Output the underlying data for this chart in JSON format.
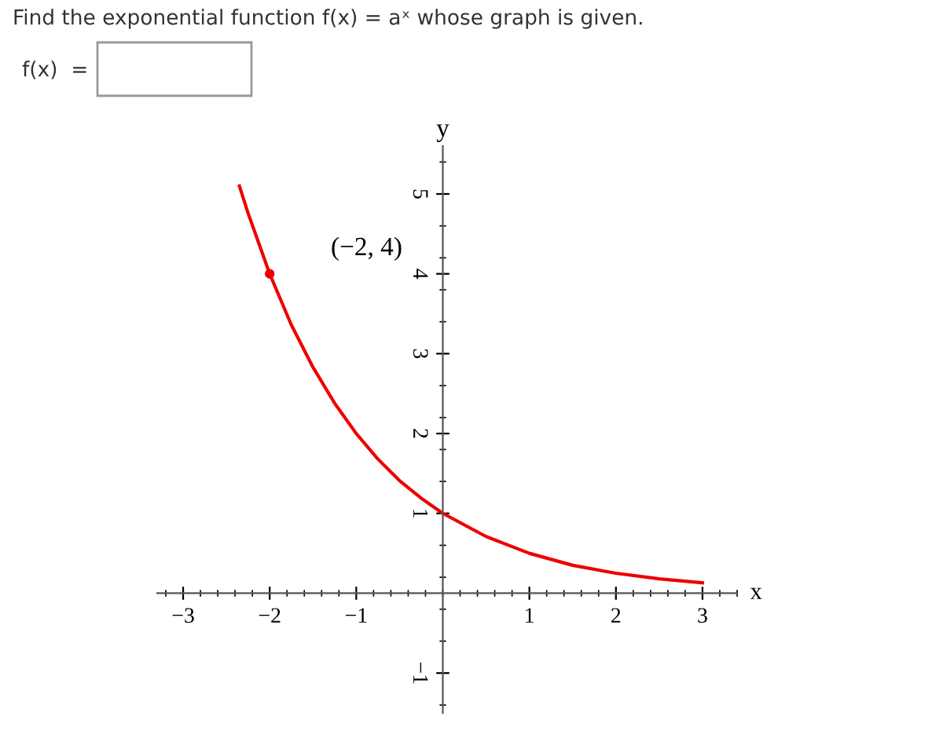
{
  "chart_data": {
    "type": "line",
    "xlabel": "x",
    "ylabel": "y",
    "annotations": [
      "Find the exponential function f(x) = aˣ whose graph is given.",
      "f(x)  =",
      {
        "text": "(−2, 4)",
        "x": -2,
        "y": 4
      }
    ],
    "series": [
      {
        "color": "#ee0000",
        "x": [
          -2.35,
          -2.25,
          -2,
          -1.75,
          -1.5,
          -1.25,
          -1,
          -0.75,
          -0.5,
          -0.25,
          0,
          0.5,
          1,
          1.5,
          2,
          2.5,
          3
        ],
        "values": [
          5.1,
          4.76,
          4,
          3.36,
          2.83,
          2.38,
          2,
          1.68,
          1.41,
          1.19,
          1,
          0.71,
          0.5,
          0.35,
          0.25,
          0.18,
          0.13
        ]
      },
      {
        "type": "scatter",
        "color": "#ee0000",
        "marker": "circle",
        "x": [
          -2
        ],
        "values": [
          4
        ]
      }
    ],
    "xlim": [
      -3.3,
      3.4
    ],
    "ylim": [
      -1.5,
      5.6
    ],
    "xticks": [
      {
        "value": -3,
        "label": "−3"
      },
      {
        "value": -2,
        "label": "−2"
      },
      {
        "value": -1,
        "label": "−1"
      },
      1,
      2,
      3
    ],
    "yticks": [
      {
        "value": -1,
        "label": "−1"
      },
      1,
      2,
      3,
      4,
      5
    ],
    "grid": false
  }
}
